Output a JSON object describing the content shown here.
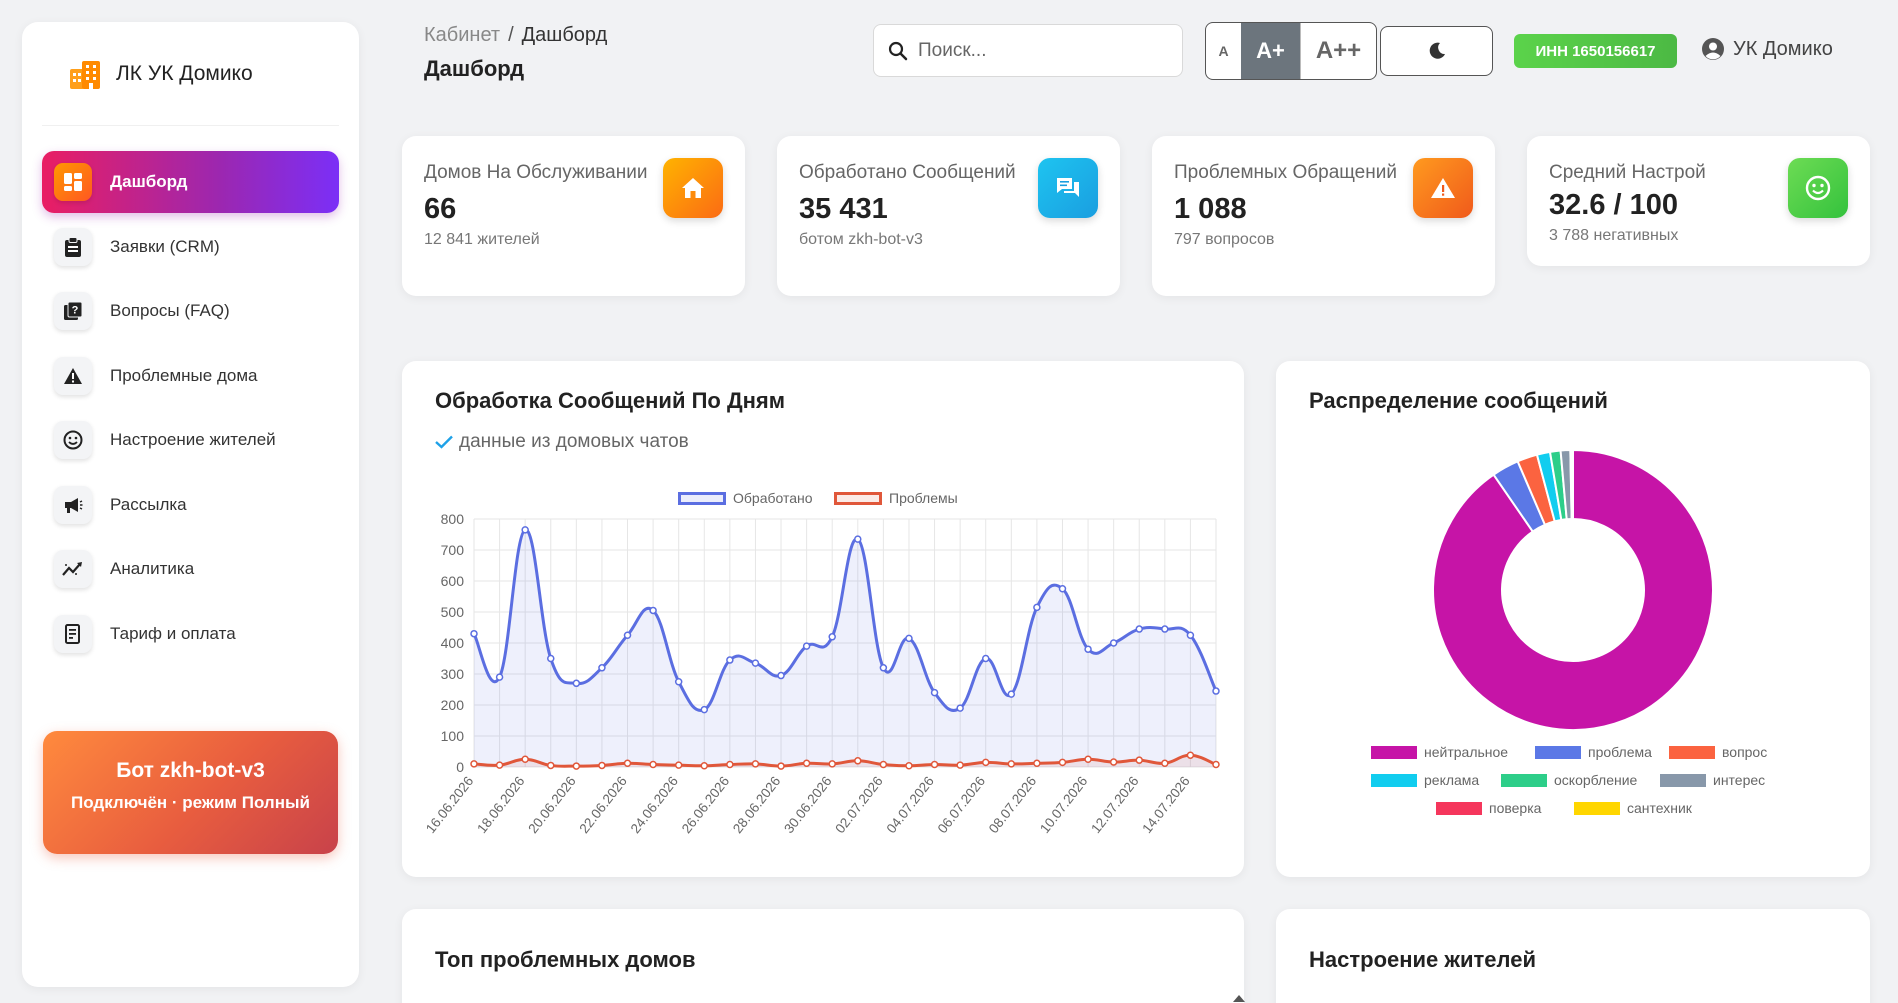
{
  "sidebar": {
    "brand": "ЛК УК Домико",
    "items": [
      {
        "label": "Дашборд",
        "icon": "dashboard-icon",
        "active": true
      },
      {
        "label": "Заявки (CRM)",
        "icon": "clipboard-icon"
      },
      {
        "label": "Вопросы (FAQ)",
        "icon": "faq-icon"
      },
      {
        "label": "Проблемные дома",
        "icon": "warning-icon"
      },
      {
        "label": "Настроение жителей",
        "icon": "smile-icon"
      },
      {
        "label": "Рассылка",
        "icon": "megaphone-icon"
      },
      {
        "label": "Аналитика",
        "icon": "analytics-icon"
      },
      {
        "label": "Тариф и оплата",
        "icon": "receipt-icon"
      }
    ],
    "bot_card": {
      "title": "Бот zkh-bot-v3",
      "subtitle": "Подключён · режим Полный"
    }
  },
  "header": {
    "breadcrumb_root": "Кабинет",
    "breadcrumb_sep": "/",
    "breadcrumb_current": "Дашборд",
    "page_title": "Дашборд",
    "search_placeholder": "Поиск...",
    "font_sizes": [
      "A",
      "A+",
      "A++"
    ],
    "font_size_active": "A+",
    "inn": "ИНН 1650156617",
    "user_name": "УК Домико"
  },
  "stats": [
    {
      "label": "Домов На Обслуживании",
      "value": "66",
      "sub": "12 841 жителей",
      "icon": "home-icon",
      "color": "#fb8c00"
    },
    {
      "label": "Обработано Сообщений",
      "value": "35 431",
      "sub": "ботом zkh-bot-v3",
      "icon": "chat-icon",
      "color": "#1aa9e6"
    },
    {
      "label": "Проблемных Обращений",
      "value": "1 088",
      "sub": "797 вопросов",
      "icon": "alert-icon",
      "color": "#f4731b"
    },
    {
      "label": "Средний Настрой",
      "value": "32.6 / 100",
      "sub": "3 788 негативных",
      "icon": "smile-icon",
      "color": "#43c743"
    }
  ],
  "line_panel": {
    "title": "Обработка Сообщений По Дням",
    "subtitle": "данные из домовых чатов"
  },
  "donut_panel": {
    "title": "Распределение сообщений"
  },
  "bottom_panels": {
    "left_title": "Топ проблемных домов",
    "right_title": "Настроение жителей"
  },
  "chart_data": [
    {
      "type": "line",
      "x": [
        "16.06.2026",
        "17.06.2026",
        "18.06.2026",
        "19.06.2026",
        "20.06.2026",
        "21.06.2026",
        "22.06.2026",
        "23.06.2026",
        "24.06.2026",
        "25.06.2026",
        "26.06.2026",
        "27.06.2026",
        "28.06.2026",
        "29.06.2026",
        "30.06.2026",
        "01.07.2026",
        "02.07.2026",
        "03.07.2026",
        "04.07.2026",
        "05.07.2026",
        "06.07.2026",
        "07.07.2026",
        "08.07.2026",
        "09.07.2026",
        "10.07.2026",
        "11.07.2026",
        "12.07.2026",
        "13.07.2026",
        "14.07.2026",
        "15.07.2026"
      ],
      "x_tick_labels": [
        "16.06.2026",
        "18.06.2026",
        "20.06.2026",
        "22.06.2026",
        "24.06.2026",
        "26.06.2026",
        "28.06.2026",
        "30.06.2026",
        "02.07.2026",
        "04.07.2026",
        "06.07.2026",
        "08.07.2026",
        "10.07.2026",
        "12.07.2026",
        "14.07.2026"
      ],
      "series": [
        {
          "name": "Обработано",
          "color": "#5b6ee1",
          "fill": "rgba(91,110,225,0.1)",
          "values": [
            430,
            290,
            765,
            350,
            270,
            320,
            425,
            505,
            275,
            185,
            345,
            335,
            295,
            390,
            420,
            735,
            320,
            415,
            240,
            190,
            350,
            235,
            515,
            575,
            380,
            400,
            445,
            445,
            425,
            245
          ]
        },
        {
          "name": "Проблемы",
          "color": "#e0573a",
          "fill": "rgba(224,87,58,0.1)",
          "values": [
            10,
            6,
            25,
            5,
            3,
            5,
            12,
            8,
            6,
            4,
            8,
            10,
            3,
            12,
            10,
            20,
            8,
            4,
            8,
            6,
            15,
            10,
            12,
            15,
            25,
            16,
            22,
            12,
            38,
            8
          ]
        }
      ],
      "ylim": [
        0,
        800
      ],
      "yticks": [
        0,
        100,
        200,
        300,
        400,
        500,
        600,
        700,
        800
      ],
      "grid": true,
      "legend": "top"
    },
    {
      "type": "pie",
      "donut": true,
      "categories": [
        "нейтральное",
        "проблема",
        "вопрос",
        "реклама",
        "оскорбление",
        "интерес",
        "поверка",
        "сантехник"
      ],
      "values": [
        89.5,
        3.1,
        2.3,
        1.5,
        1.2,
        1.1,
        0.15,
        0.15
      ],
      "colors": [
        "#c614a7",
        "#5b78e6",
        "#fb6340",
        "#11cdef",
        "#2dce89",
        "#8898aa",
        "#f5365c",
        "#ffd600"
      ],
      "legend": "bottom"
    }
  ]
}
